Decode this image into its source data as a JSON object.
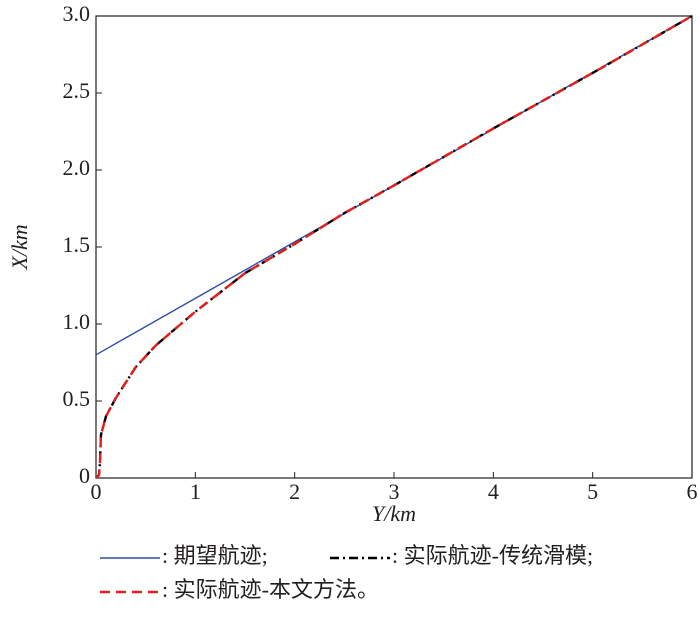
{
  "chart_data": {
    "type": "line",
    "xlabel": "Y/km",
    "ylabel": "X/km",
    "xlim": [
      0,
      6
    ],
    "ylim": [
      0,
      3
    ],
    "xticks": [
      0,
      1,
      2,
      3,
      4,
      5,
      6
    ],
    "yticks": [
      0,
      0.5,
      {
        "value": 1,
        "label": "1.0"
      },
      1.5,
      {
        "value": 2,
        "label": "2.0"
      },
      2.5,
      {
        "value": 3,
        "label": "3.0"
      }
    ],
    "series": [
      {
        "name": ": 期望航迹;",
        "color": "#2e4fa3",
        "style": "solid",
        "x": [
          0,
          6
        ],
        "values": [
          0.8,
          3.0
        ]
      },
      {
        "name": ": 实际航迹-传统滑模;",
        "color": "#000000",
        "style": "dashdot",
        "x": [
          0,
          0.03,
          0.04,
          0.05,
          0.1,
          0.2,
          0.4,
          0.6,
          1,
          1.5,
          2,
          2.5,
          3,
          4,
          5,
          6
        ],
        "values": [
          0,
          0.02,
          0.1,
          0.28,
          0.4,
          0.52,
          0.72,
          0.86,
          1.08,
          1.33,
          1.52,
          1.72,
          1.9,
          2.27,
          2.63,
          3.0
        ]
      },
      {
        "name": ": 实际航迹-本文方法。",
        "color": "#e0201b",
        "style": "dashed",
        "x": [
          0,
          0.03,
          0.04,
          0.05,
          0.1,
          0.2,
          0.4,
          0.6,
          1,
          1.5,
          2,
          2.5,
          3,
          4,
          5,
          6
        ],
        "values": [
          0,
          0.02,
          0.1,
          0.28,
          0.4,
          0.52,
          0.72,
          0.86,
          1.08,
          1.33,
          1.52,
          1.72,
          1.9,
          2.27,
          2.63,
          3.0
        ]
      }
    ]
  }
}
